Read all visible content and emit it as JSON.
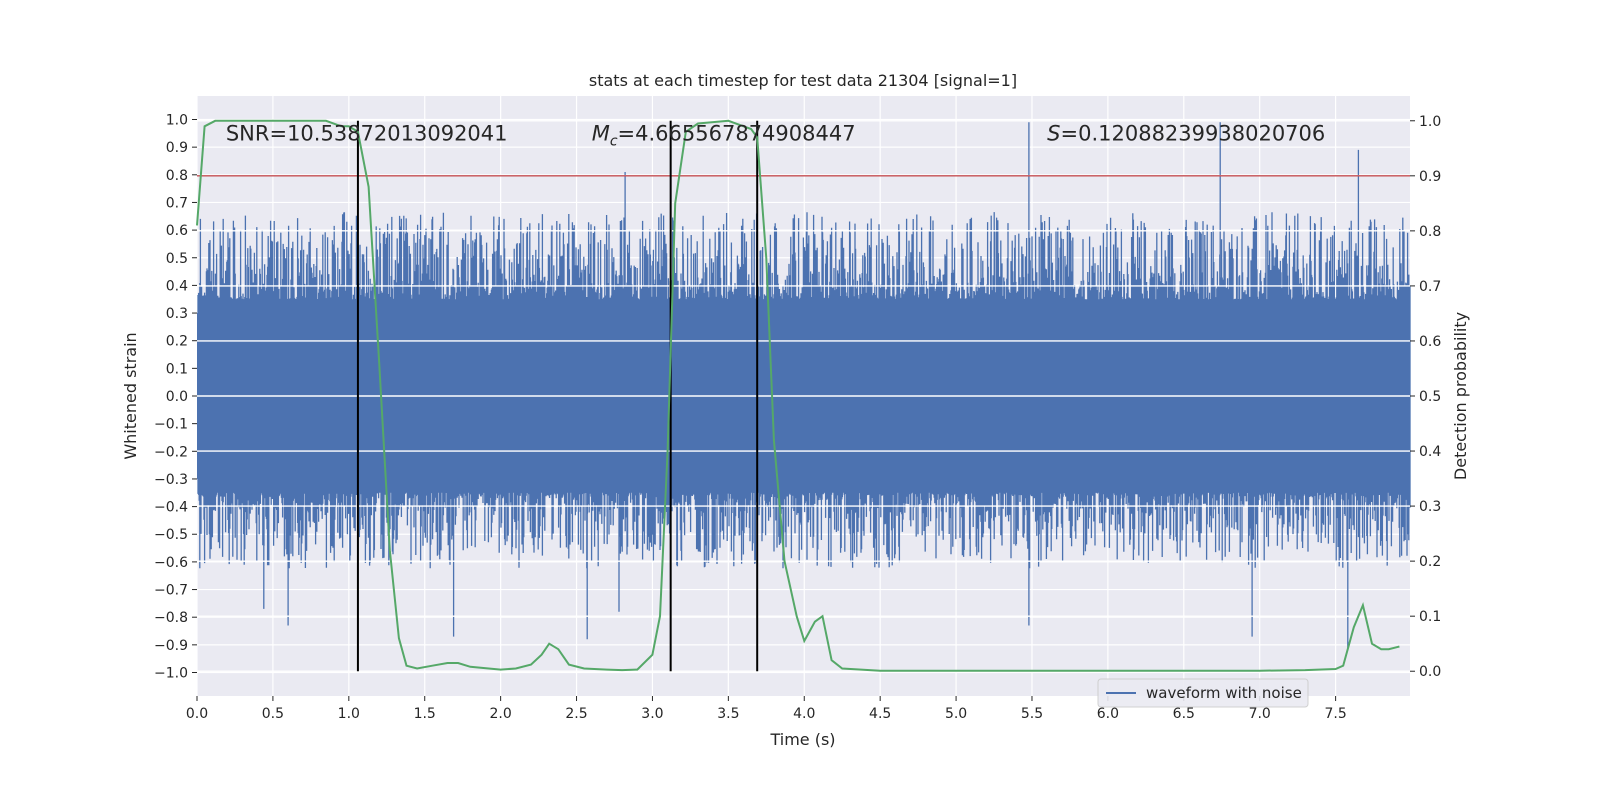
{
  "chart_data": {
    "type": "line",
    "title": "stats at each timestep for test data 21304 [signal=1]",
    "xlabel": "Time (s)",
    "ylabel": "Whitened strain",
    "ylabel_right": "Detection probability",
    "xlim": [
      0,
      7.99
    ],
    "ylim": [
      -1.085,
      1.085
    ],
    "ylim_right": [
      -0.045,
      1.045
    ],
    "x_ticks": [
      "0.0",
      "0.5",
      "1.0",
      "1.5",
      "2.0",
      "2.5",
      "3.0",
      "3.5",
      "4.0",
      "4.5",
      "5.0",
      "5.5",
      "6.0",
      "6.5",
      "7.0",
      "7.5"
    ],
    "y_ticks": [
      "1.0",
      "0.9",
      "0.8",
      "0.7",
      "0.6",
      "0.5",
      "0.4",
      "0.3",
      "0.2",
      "0.1",
      "0.0",
      "−0.1",
      "−0.2",
      "−0.3",
      "−0.4",
      "−0.5",
      "−0.6",
      "−0.7",
      "−0.8",
      "−0.9",
      "−1.0"
    ],
    "y_ticks_right": [
      "1.0",
      "0.9",
      "0.8",
      "0.7",
      "0.6",
      "0.5",
      "0.4",
      "0.3",
      "0.2",
      "0.1",
      "0.0"
    ],
    "grid": true,
    "legend_position": "lower right",
    "annotations": {
      "snr": "SNR=10.53872013092041",
      "mc_symbol": "M",
      "mc_sub": "c",
      "mc_value": "=4.665567874908447",
      "s_symbol": "S",
      "s_value": "=0.12088239938020706"
    },
    "annotation_x": [
      0.19,
      2.6,
      5.6
    ],
    "annotation_y": 0.97,
    "threshold": {
      "value": 0.9,
      "color": "#c44e52"
    },
    "vertical_markers": {
      "x": [
        1.06,
        3.12,
        3.69
      ],
      "y_range": [
        0.0,
        1.0
      ],
      "color": "#000000"
    },
    "series": [
      {
        "name": "waveform with noise",
        "axis": "left",
        "color": "#4c72b0",
        "generated_noise": true,
        "core_amplitude": 0.35,
        "peak_up": 0.65,
        "peak_down": -0.6,
        "extreme_peaks": [
          {
            "x": 0.44,
            "y": -0.77
          },
          {
            "x": 0.6,
            "y": -0.83
          },
          {
            "x": 1.69,
            "y": -0.87
          },
          {
            "x": 2.57,
            "y": -0.88
          },
          {
            "x": 2.78,
            "y": -0.78
          },
          {
            "x": 2.82,
            "y": 0.81
          },
          {
            "x": 5.48,
            "y": 0.99
          },
          {
            "x": 5.48,
            "y": -0.83
          },
          {
            "x": 6.74,
            "y": 0.99
          },
          {
            "x": 6.95,
            "y": -0.87
          },
          {
            "x": 7.58,
            "y": -0.92
          },
          {
            "x": 7.65,
            "y": 0.89
          }
        ]
      },
      {
        "name": "Detection probability",
        "axis": "right",
        "color": "#55a868",
        "x": [
          0.0,
          0.05,
          0.12,
          0.25,
          0.5,
          0.75,
          0.85,
          0.95,
          1.0,
          1.06,
          1.13,
          1.2,
          1.27,
          1.33,
          1.38,
          1.45,
          1.55,
          1.65,
          1.72,
          1.8,
          2.0,
          2.1,
          2.2,
          2.27,
          2.32,
          2.38,
          2.45,
          2.55,
          2.7,
          2.8,
          2.9,
          3.0,
          3.05,
          3.1,
          3.15,
          3.22,
          3.3,
          3.5,
          3.6,
          3.65,
          3.69,
          3.75,
          3.8,
          3.87,
          3.95,
          4.0,
          4.07,
          4.12,
          4.18,
          4.25,
          4.5,
          5.0,
          5.5,
          6.0,
          6.5,
          7.0,
          7.3,
          7.5,
          7.55,
          7.62,
          7.68,
          7.74,
          7.8,
          7.85,
          7.92
        ],
        "values": [
          0.81,
          0.99,
          1.0,
          1.0,
          1.0,
          1.0,
          1.0,
          0.99,
          0.99,
          0.98,
          0.88,
          0.56,
          0.22,
          0.06,
          0.01,
          0.005,
          0.01,
          0.015,
          0.015,
          0.008,
          0.003,
          0.005,
          0.012,
          0.03,
          0.05,
          0.04,
          0.012,
          0.005,
          0.003,
          0.002,
          0.003,
          0.03,
          0.1,
          0.4,
          0.85,
          0.98,
          0.995,
          1.0,
          0.99,
          0.985,
          0.97,
          0.75,
          0.42,
          0.2,
          0.1,
          0.055,
          0.09,
          0.1,
          0.02,
          0.005,
          0.001,
          0.001,
          0.001,
          0.001,
          0.001,
          0.001,
          0.002,
          0.004,
          0.01,
          0.08,
          0.12,
          0.05,
          0.04,
          0.04,
          0.045
        ]
      }
    ]
  }
}
